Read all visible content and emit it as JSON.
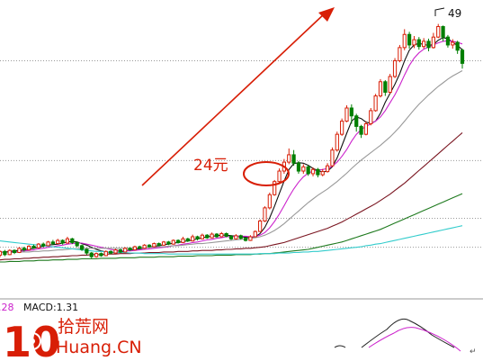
{
  "chart_data": {
    "type": "candlestick",
    "annotations": {
      "price_label": "24元",
      "high_label": "49"
    },
    "indicator": {
      "left_value": ".28",
      "macd_text": "MACD:1.31"
    },
    "watermark": {
      "logo_digits": "10",
      "site_cn": "拾荒网",
      "site_en": "Huang.CN"
    },
    "price_scale": {
      "min": 3,
      "max": 52
    },
    "candles": [
      [
        5.5,
        6.2,
        5.1,
        6.4,
        "up"
      ],
      [
        6.2,
        5.6,
        5.3,
        6.5,
        "down"
      ],
      [
        5.6,
        6.4,
        5.5,
        6.6,
        "up"
      ],
      [
        6.4,
        6.0,
        5.7,
        6.6,
        "down"
      ],
      [
        6.0,
        6.8,
        5.9,
        7.0,
        "up"
      ],
      [
        6.8,
        6.5,
        6.2,
        7.1,
        "down"
      ],
      [
        6.5,
        7.2,
        6.4,
        7.4,
        "up"
      ],
      [
        7.2,
        6.9,
        6.7,
        7.5,
        "down"
      ],
      [
        6.9,
        7.6,
        6.8,
        7.8,
        "up"
      ],
      [
        7.6,
        7.3,
        7.0,
        7.9,
        "down"
      ],
      [
        7.3,
        8.0,
        7.2,
        8.2,
        "up"
      ],
      [
        8.0,
        7.7,
        7.4,
        8.4,
        "down"
      ],
      [
        7.7,
        8.3,
        7.6,
        8.6,
        "up"
      ],
      [
        8.3,
        7.8,
        7.5,
        8.5,
        "down"
      ],
      [
        7.8,
        8.6,
        7.7,
        9.0,
        "up"
      ],
      [
        8.6,
        7.9,
        7.6,
        8.8,
        "down"
      ],
      [
        7.9,
        7.3,
        7.0,
        8.1,
        "down"
      ],
      [
        7.3,
        6.6,
        6.3,
        7.5,
        "down"
      ],
      [
        6.6,
        5.9,
        5.5,
        6.8,
        "down"
      ],
      [
        5.9,
        5.2,
        4.9,
        6.1,
        "down"
      ],
      [
        5.2,
        5.8,
        5.0,
        6.0,
        "up"
      ],
      [
        5.8,
        5.4,
        5.2,
        6.0,
        "down"
      ],
      [
        5.4,
        6.2,
        5.3,
        6.4,
        "up"
      ],
      [
        6.2,
        5.9,
        5.7,
        6.4,
        "down"
      ],
      [
        5.9,
        6.5,
        5.8,
        6.7,
        "up"
      ],
      [
        6.5,
        6.1,
        5.9,
        6.7,
        "down"
      ],
      [
        6.1,
        6.8,
        6.0,
        7.0,
        "up"
      ],
      [
        6.8,
        6.5,
        6.3,
        7.0,
        "down"
      ],
      [
        6.5,
        7.1,
        6.4,
        7.3,
        "up"
      ],
      [
        7.1,
        6.8,
        6.6,
        7.3,
        "down"
      ],
      [
        6.8,
        7.4,
        6.7,
        7.6,
        "up"
      ],
      [
        7.4,
        7.1,
        6.9,
        7.6,
        "down"
      ],
      [
        7.1,
        7.7,
        7.0,
        7.9,
        "up"
      ],
      [
        7.7,
        7.4,
        7.2,
        7.9,
        "down"
      ],
      [
        7.4,
        8.0,
        7.3,
        8.2,
        "up"
      ],
      [
        8.0,
        7.6,
        7.4,
        8.2,
        "down"
      ],
      [
        7.6,
        8.3,
        7.5,
        8.5,
        "up"
      ],
      [
        8.3,
        7.9,
        7.7,
        8.5,
        "down"
      ],
      [
        7.9,
        8.6,
        7.8,
        9.0,
        "up"
      ],
      [
        8.6,
        8.2,
        8.0,
        8.8,
        "down"
      ],
      [
        8.2,
        9.0,
        8.1,
        9.4,
        "up"
      ],
      [
        9.0,
        8.6,
        8.3,
        9.2,
        "down"
      ],
      [
        8.6,
        9.3,
        8.5,
        9.6,
        "up"
      ],
      [
        9.3,
        8.8,
        8.6,
        9.5,
        "down"
      ],
      [
        8.8,
        9.5,
        8.7,
        9.8,
        "up"
      ],
      [
        9.5,
        9.0,
        8.8,
        9.7,
        "down"
      ],
      [
        9.0,
        9.6,
        8.9,
        9.9,
        "up"
      ],
      [
        9.6,
        9.1,
        8.9,
        9.8,
        "down"
      ],
      [
        9.1,
        8.6,
        8.4,
        9.3,
        "down"
      ],
      [
        8.6,
        9.2,
        8.5,
        9.5,
        "up"
      ],
      [
        9.2,
        8.7,
        8.5,
        9.4,
        "down"
      ],
      [
        8.7,
        8.3,
        8.1,
        8.9,
        "down"
      ],
      [
        8.3,
        9.0,
        8.2,
        9.3,
        "up"
      ],
      [
        9.0,
        10.0,
        8.9,
        10.2,
        "up"
      ],
      [
        10.0,
        12.0,
        9.9,
        12.3,
        "up"
      ],
      [
        12.0,
        14.5,
        11.8,
        14.8,
        "up"
      ],
      [
        14.5,
        17.0,
        14.2,
        17.4,
        "up"
      ],
      [
        17.0,
        19.5,
        16.8,
        19.8,
        "up"
      ],
      [
        19.5,
        21.5,
        19.0,
        22.0,
        "up"
      ],
      [
        21.5,
        23.2,
        21.0,
        23.8,
        "up"
      ],
      [
        23.2,
        24.6,
        22.8,
        25.8,
        "up"
      ],
      [
        24.6,
        23.0,
        22.5,
        25.5,
        "down"
      ],
      [
        23.0,
        21.5,
        21.0,
        23.4,
        "down"
      ],
      [
        21.5,
        22.3,
        21.0,
        22.8,
        "up"
      ],
      [
        22.3,
        21.0,
        20.6,
        22.6,
        "down"
      ],
      [
        21.0,
        21.8,
        20.5,
        22.2,
        "up"
      ],
      [
        21.8,
        20.8,
        20.3,
        22.1,
        "down"
      ],
      [
        20.8,
        21.4,
        20.5,
        21.9,
        "up"
      ],
      [
        21.4,
        22.5,
        21.2,
        23.0,
        "up"
      ],
      [
        22.5,
        25.5,
        22.3,
        26.0,
        "up"
      ],
      [
        25.5,
        28.5,
        25.2,
        29.0,
        "up"
      ],
      [
        28.5,
        31.0,
        28.2,
        31.5,
        "up"
      ],
      [
        31.0,
        33.5,
        30.8,
        34.0,
        "up"
      ],
      [
        33.5,
        32.0,
        30.5,
        34.2,
        "down"
      ],
      [
        32.0,
        30.0,
        29.0,
        32.4,
        "down"
      ],
      [
        30.0,
        28.5,
        27.8,
        30.3,
        "down"
      ],
      [
        28.5,
        30.5,
        28.3,
        31.0,
        "up"
      ],
      [
        30.5,
        33.0,
        30.2,
        33.5,
        "up"
      ],
      [
        33.0,
        35.8,
        32.8,
        36.2,
        "up"
      ],
      [
        35.8,
        38.5,
        35.5,
        39.0,
        "up"
      ],
      [
        38.5,
        36.5,
        35.8,
        38.8,
        "down"
      ],
      [
        36.5,
        39.5,
        36.2,
        40.0,
        "up"
      ],
      [
        39.5,
        42.5,
        39.2,
        43.0,
        "up"
      ],
      [
        42.5,
        45.0,
        42.2,
        45.5,
        "up"
      ],
      [
        45.0,
        47.5,
        44.5,
        48.5,
        "up"
      ],
      [
        47.5,
        45.5,
        44.8,
        48.0,
        "down"
      ],
      [
        45.5,
        46.5,
        44.9,
        47.2,
        "up"
      ],
      [
        46.5,
        45.2,
        44.6,
        47.0,
        "down"
      ],
      [
        45.2,
        46.2,
        44.8,
        46.8,
        "up"
      ],
      [
        46.2,
        45.0,
        44.3,
        46.7,
        "down"
      ],
      [
        45.0,
        47.0,
        44.8,
        47.8,
        "up"
      ],
      [
        47.0,
        49.0,
        46.8,
        49.5,
        "up"
      ],
      [
        49.0,
        47.0,
        46.2,
        49.2,
        "down"
      ],
      [
        47.0,
        45.5,
        45.0,
        47.4,
        "down"
      ],
      [
        45.5,
        46.0,
        44.8,
        46.6,
        "up"
      ],
      [
        46.0,
        44.5,
        43.8,
        46.3,
        "down"
      ],
      [
        44.5,
        42.0,
        41.0,
        44.8,
        "down"
      ]
    ],
    "moving_averages": [
      {
        "color": "#111111",
        "values": [
          6,
          6.1,
          6.2,
          6.3,
          6.4,
          6.5,
          6.7,
          6.8,
          7.0,
          7.2,
          7.4,
          7.5,
          7.6,
          7.8,
          8.0,
          8.1,
          8.0,
          7.7,
          7.4,
          7.0,
          6.6,
          6.3,
          6.1,
          6.0,
          6.0,
          6.1,
          6.3,
          6.5,
          6.6,
          6.7,
          6.9,
          7.0,
          7.2,
          7.3,
          7.5,
          7.6,
          7.8,
          7.9,
          8.1,
          8.2,
          8.4,
          8.6,
          8.8,
          9.0,
          9.1,
          9.2,
          9.3,
          9.3,
          9.2,
          9.1,
          9.0,
          8.9,
          8.8,
          9.0,
          9.6,
          10.8,
          12.6,
          14.8,
          17.2,
          19.6,
          21.8,
          22.9,
          23.1,
          23.0,
          22.6,
          22.0,
          21.6,
          21.3,
          21.5,
          22.3,
          24.0,
          26.3,
          28.7,
          31.0,
          31.8,
          31.5,
          30.8,
          30.6,
          31.0,
          32.5,
          34.6,
          36.3,
          38.0,
          40.0,
          42.5,
          44.5,
          45.5,
          45.8,
          45.6,
          45.4,
          45.6,
          46.4,
          46.9,
          46.7,
          46.0,
          45.4,
          44.6
        ]
      },
      {
        "color": "#cc22cc",
        "values": [
          6,
          6.0,
          6.1,
          6.1,
          6.2,
          6.3,
          6.4,
          6.5,
          6.7,
          6.8,
          7.0,
          7.1,
          7.3,
          7.4,
          7.6,
          7.7,
          7.8,
          7.8,
          7.6,
          7.4,
          7.2,
          7.0,
          6.8,
          6.6,
          6.4,
          6.3,
          6.3,
          6.3,
          6.4,
          6.5,
          6.6,
          6.7,
          6.8,
          6.9,
          7.0,
          7.1,
          7.3,
          7.4,
          7.6,
          7.7,
          7.9,
          8.0,
          8.2,
          8.4,
          8.5,
          8.7,
          8.8,
          9.0,
          9.0,
          9.1,
          9.1,
          9.1,
          9.0,
          9.0,
          9.3,
          9.8,
          10.7,
          11.9,
          13.3,
          14.9,
          16.6,
          18.1,
          19.4,
          20.4,
          21.1,
          21.5,
          21.7,
          21.8,
          22.0,
          22.4,
          23.2,
          24.3,
          25.6,
          27.2,
          28.5,
          29.4,
          30.0,
          30.5,
          31.0,
          31.8,
          33.0,
          34.5,
          36.0,
          37.8,
          39.8,
          41.6,
          43.0,
          44.0,
          44.7,
          45.1,
          45.5,
          45.9,
          46.2,
          46.3,
          46.2,
          46.0,
          45.7
        ]
      },
      {
        "color": "#999999",
        "values": [
          6,
          6.0,
          6.0,
          6.0,
          6.1,
          6.1,
          6.1,
          6.2,
          6.2,
          6.3,
          6.3,
          6.4,
          6.5,
          6.5,
          6.6,
          6.7,
          6.7,
          6.8,
          6.8,
          6.8,
          6.8,
          6.8,
          6.8,
          6.8,
          6.8,
          6.8,
          6.8,
          6.8,
          6.8,
          6.9,
          6.9,
          7.0,
          7.0,
          7.1,
          7.1,
          7.2,
          7.3,
          7.3,
          7.4,
          7.5,
          7.6,
          7.7,
          7.7,
          7.8,
          7.9,
          8.0,
          8.1,
          8.2,
          8.3,
          8.4,
          8.5,
          8.6,
          8.7,
          8.8,
          9.0,
          9.3,
          9.7,
          10.2,
          10.8,
          11.5,
          12.3,
          13.1,
          13.9,
          14.7,
          15.5,
          16.2,
          16.9,
          17.5,
          18.1,
          18.8,
          19.5,
          20.3,
          21.1,
          22.0,
          22.8,
          23.6,
          24.3,
          25.0,
          25.7,
          26.4,
          27.2,
          28.0,
          28.9,
          29.9,
          31.0,
          32.1,
          33.2,
          34.2,
          35.1,
          36.0,
          36.8,
          37.6,
          38.3,
          39.0,
          39.6,
          40.1,
          40.6
        ]
      },
      {
        "color": "#7a1520",
        "values": [
          4.6,
          4.7,
          4.7,
          4.8,
          4.8,
          4.9,
          4.9,
          5.0,
          5.0,
          5.1,
          5.1,
          5.2,
          5.2,
          5.3,
          5.3,
          5.4,
          5.4,
          5.5,
          5.5,
          5.6,
          5.6,
          5.6,
          5.7,
          5.7,
          5.7,
          5.8,
          5.8,
          5.8,
          5.9,
          5.9,
          5.9,
          6.0,
          6.0,
          6.0,
          6.1,
          6.1,
          6.1,
          6.2,
          6.2,
          6.2,
          6.3,
          6.3,
          6.4,
          6.4,
          6.4,
          6.5,
          6.5,
          6.6,
          6.6,
          6.7,
          6.7,
          6.8,
          6.8,
          6.9,
          7.0,
          7.1,
          7.3,
          7.5,
          7.7,
          7.9,
          8.2,
          8.5,
          8.8,
          9.1,
          9.4,
          9.7,
          10.0,
          10.3,
          10.6,
          11.0,
          11.4,
          11.8,
          12.3,
          12.8,
          13.3,
          13.8,
          14.3,
          14.8,
          15.3,
          15.9,
          16.5,
          17.1,
          17.8,
          18.5,
          19.2,
          20.0,
          20.8,
          21.6,
          22.4,
          23.2,
          24.0,
          24.8,
          25.6,
          26.4,
          27.2,
          28.0,
          28.8
        ]
      },
      {
        "color": "#1e7a1e",
        "values": [
          4.2,
          4.2,
          4.3,
          4.3,
          4.3,
          4.4,
          4.4,
          4.4,
          4.5,
          4.5,
          4.5,
          4.6,
          4.6,
          4.6,
          4.7,
          4.7,
          4.7,
          4.8,
          4.8,
          4.8,
          4.8,
          4.9,
          4.9,
          4.9,
          4.9,
          5.0,
          5.0,
          5.0,
          5.0,
          5.1,
          5.1,
          5.1,
          5.1,
          5.2,
          5.2,
          5.2,
          5.2,
          5.3,
          5.3,
          5.3,
          5.3,
          5.4,
          5.4,
          5.4,
          5.4,
          5.5,
          5.5,
          5.5,
          5.5,
          5.6,
          5.6,
          5.6,
          5.6,
          5.7,
          5.7,
          5.8,
          5.8,
          5.9,
          6.0,
          6.1,
          6.2,
          6.3,
          6.4,
          6.5,
          6.6,
          6.8,
          7.0,
          7.2,
          7.4,
          7.6,
          7.8,
          8.0,
          8.3,
          8.6,
          8.9,
          9.2,
          9.5,
          9.8,
          10.1,
          10.4,
          10.8,
          11.2,
          11.6,
          12.0,
          12.4,
          12.8,
          13.2,
          13.6,
          14.0,
          14.4,
          14.8,
          15.2,
          15.6,
          16.0,
          16.4,
          16.8,
          17.2
        ]
      },
      {
        "color": "#33cccc",
        "values": [
          8.2,
          8.1,
          8.0,
          7.9,
          7.8,
          7.7,
          7.6,
          7.5,
          7.4,
          7.3,
          7.2,
          7.1,
          7.0,
          6.9,
          6.8,
          6.7,
          6.6,
          6.5,
          6.4,
          6.3,
          6.2,
          6.2,
          6.1,
          6.1,
          6.0,
          6.0,
          6.0,
          5.9,
          5.9,
          5.9,
          5.8,
          5.8,
          5.8,
          5.8,
          5.8,
          5.7,
          5.7,
          5.7,
          5.7,
          5.7,
          5.7,
          5.7,
          5.7,
          5.7,
          5.7,
          5.7,
          5.7,
          5.7,
          5.7,
          5.7,
          5.7,
          5.7,
          5.7,
          5.7,
          5.8,
          5.8,
          5.8,
          5.8,
          5.9,
          5.9,
          5.9,
          6.0,
          6.0,
          6.1,
          6.1,
          6.2,
          6.2,
          6.3,
          6.4,
          6.5,
          6.6,
          6.7,
          6.8,
          6.9,
          7.0,
          7.1,
          7.3,
          7.4,
          7.6,
          7.7,
          7.9,
          8.1,
          8.3,
          8.5,
          8.7,
          8.9,
          9.1,
          9.3,
          9.5,
          9.7,
          9.9,
          10.1,
          10.3,
          10.5,
          10.7,
          10.9,
          11.1
        ]
      }
    ],
    "gridlines": [
      7,
      12.5,
      23.5,
      42.5
    ],
    "colors": {
      "up": "#d81e06",
      "down": "#007f00",
      "accent": "#d81e06",
      "grid": "#999999"
    }
  }
}
